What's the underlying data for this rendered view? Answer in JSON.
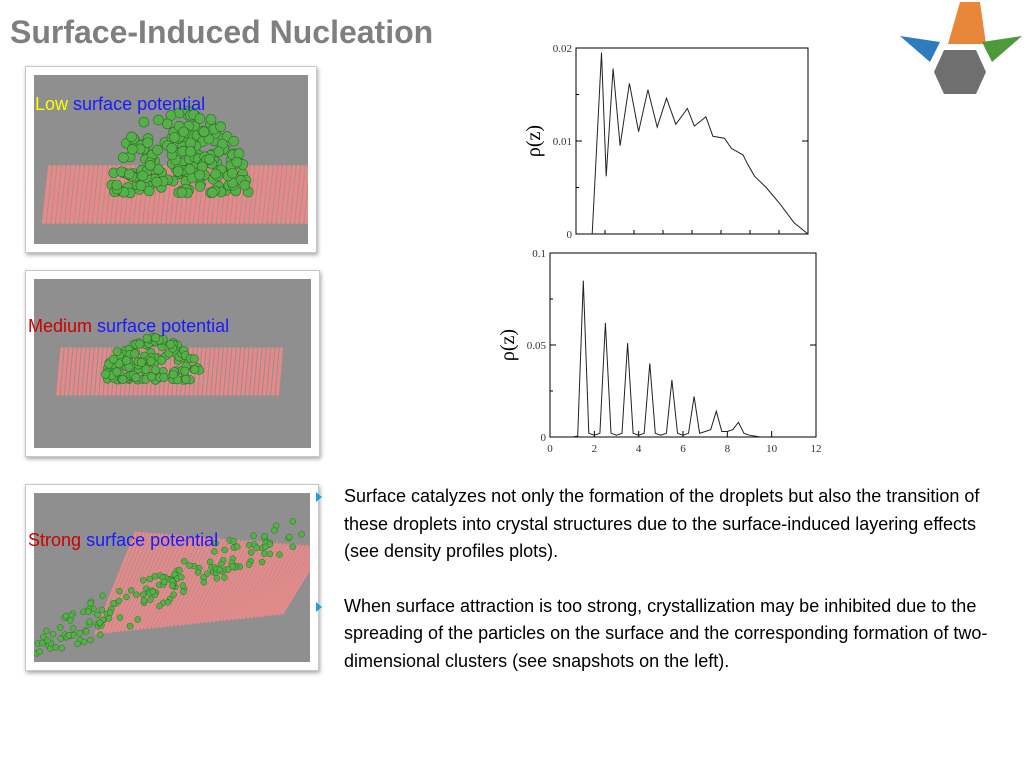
{
  "slide": {
    "title": "Surface-Induced Nucleation"
  },
  "snapshots": [
    {
      "strength_word": "Low",
      "rest": "surface potential"
    },
    {
      "strength_word": "Medium",
      "rest": "surface potential"
    },
    {
      "strength_word": "Strong",
      "rest": "surface potential"
    }
  ],
  "bullets": [
    "Surface catalyzes not only the formation of the droplets but also the transition of these droplets into crystal structures due to the surface-induced layering effects (see  density profiles plots).",
    "When surface attraction is too strong, crystallization may be inhibited due to the spreading of the particles on the surface and the corresponding formation of two-dimensional clusters (see snapshots on the left)."
  ],
  "colors": {
    "title": "#7f7f7f",
    "low_word": "#ffff00",
    "medium_word": "#cc0000",
    "strong_word": "#cc0000",
    "surface_potential": "#1a1aff",
    "bullet_marker": "#1f9fd6",
    "particles": "#55b04a",
    "surface_rods": "#e48a8a",
    "logo_orange": "#e8873a",
    "logo_blue": "#2f7bbf",
    "logo_green": "#4d9a3a",
    "logo_gray": "#6f6f6f"
  },
  "icons": {
    "logo": "hexagon-logo-icon",
    "bullet": "arrow-bullet-icon"
  },
  "chart_data": [
    {
      "type": "line",
      "title": "",
      "xlabel": "",
      "ylabel": "ρ(z)",
      "ylim": [
        0,
        0.02
      ],
      "ytick_labels": [
        "0",
        "0.01",
        "0.02"
      ],
      "x_ticks_labeled": false,
      "grid": false,
      "series": [
        {
          "name": "",
          "x": [
            0.07,
            0.11,
            0.13,
            0.16,
            0.19,
            0.23,
            0.27,
            0.31,
            0.35,
            0.39,
            0.43,
            0.48,
            0.51,
            0.56,
            0.59,
            0.64,
            0.67,
            0.72,
            0.74,
            0.77,
            0.82,
            0.88,
            0.94,
            1.0
          ],
          "y": [
            0.0,
            0.0195,
            0.0062,
            0.0178,
            0.0095,
            0.0162,
            0.011,
            0.0155,
            0.0115,
            0.0146,
            0.0118,
            0.0135,
            0.0116,
            0.0126,
            0.0105,
            0.0103,
            0.0092,
            0.0085,
            0.0075,
            0.0062,
            0.005,
            0.0032,
            0.0012,
            0.0
          ]
        }
      ]
    },
    {
      "type": "line",
      "title": "",
      "xlabel": "",
      "ylabel": "ρ(z)",
      "xlim": [
        0,
        12
      ],
      "ylim": [
        0,
        0.1
      ],
      "xtick_labels": [
        "0",
        "2",
        "4",
        "6",
        "8",
        "10",
        "12"
      ],
      "ytick_labels": [
        "0",
        "0.05",
        "0.1"
      ],
      "grid": false,
      "series": [
        {
          "name": "",
          "x": [
            1.0,
            1.25,
            1.5,
            1.75,
            2.0,
            2.25,
            2.5,
            2.75,
            3.0,
            3.25,
            3.5,
            3.75,
            4.0,
            4.25,
            4.5,
            4.75,
            5.0,
            5.25,
            5.5,
            5.75,
            6.0,
            6.25,
            6.5,
            6.75,
            7.0,
            7.25,
            7.5,
            7.75,
            8.0,
            8.25,
            8.5,
            8.75,
            9.0,
            9.5
          ],
          "y": [
            0.0,
            0.0005,
            0.085,
            0.002,
            0.001,
            0.002,
            0.062,
            0.002,
            0.001,
            0.002,
            0.051,
            0.002,
            0.001,
            0.002,
            0.04,
            0.002,
            0.001,
            0.002,
            0.031,
            0.002,
            0.001,
            0.002,
            0.022,
            0.002,
            0.003,
            0.004,
            0.014,
            0.003,
            0.003,
            0.004,
            0.008,
            0.002,
            0.001,
            0.0
          ]
        }
      ]
    }
  ]
}
